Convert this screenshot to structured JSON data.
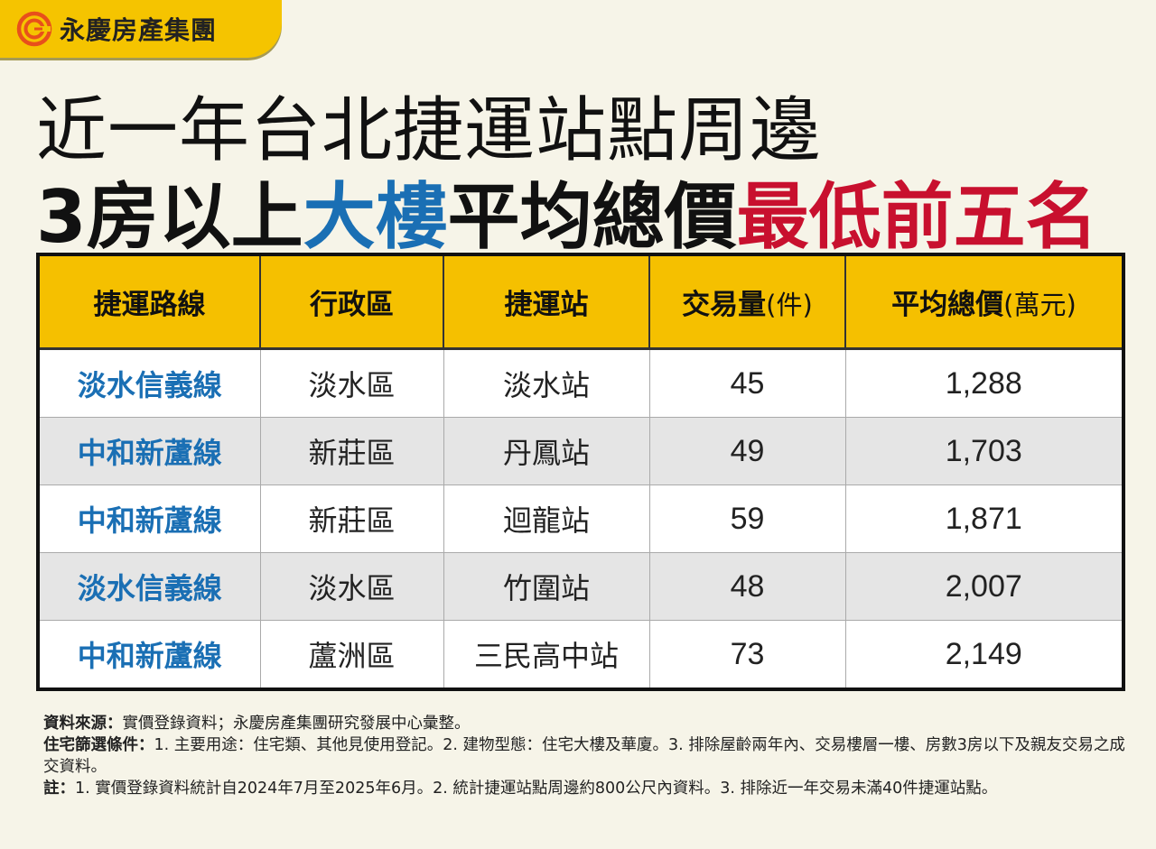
{
  "brand": {
    "name": "永慶房產集團",
    "logo_icon": "target-circle-icon",
    "accent_color": "#f5c400"
  },
  "title": {
    "line1": "近一年台北捷運站點周邊",
    "line2_part1": "3房以上",
    "line2_part2": "大樓",
    "line2_part3": "平均總價",
    "line2_part4": "最低前五名",
    "blue_color": "#1a6fb4",
    "red_color": "#c8102e"
  },
  "table": {
    "headers": [
      {
        "text": "捷運路線",
        "unit": ""
      },
      {
        "text": "行政區",
        "unit": ""
      },
      {
        "text": "捷運站",
        "unit": ""
      },
      {
        "text": "交易量",
        "unit": "(件)"
      },
      {
        "text": "平均總價",
        "unit": "(萬元)"
      }
    ],
    "rows": [
      {
        "line": "淡水信義線",
        "district": "淡水區",
        "station": "淡水站",
        "volume": "45",
        "avg_price": "1,288"
      },
      {
        "line": "中和新蘆線",
        "district": "新莊區",
        "station": "丹鳳站",
        "volume": "49",
        "avg_price": "1,703"
      },
      {
        "line": "中和新蘆線",
        "district": "新莊區",
        "station": "迴龍站",
        "volume": "59",
        "avg_price": "1,871"
      },
      {
        "line": "淡水信義線",
        "district": "淡水區",
        "station": "竹圍站",
        "volume": "48",
        "avg_price": "2,007"
      },
      {
        "line": "中和新蘆線",
        "district": "蘆洲區",
        "station": "三民高中站",
        "volume": "73",
        "avg_price": "2,149"
      }
    ]
  },
  "notes": {
    "source_label": "資料來源：",
    "source_text": "實價登錄資料；永慶房產集團研究發展中心彙整。",
    "criteria_label": "住宅篩選條件：",
    "criteria_text": "1. 主要用途：住宅類、其他見使用登記。2. 建物型態：住宅大樓及華廈。3. 排除屋齡兩年內、交易樓層一樓、房數3房以下及親友交易之成交資料。",
    "note_label": "註：",
    "note_text": "1. 實價登錄資料統計自2024年7月至2025年6月。2. 統計捷運站點周邊約800公尺內資料。3. 排除近一年交易未滿40件捷運站點。"
  }
}
